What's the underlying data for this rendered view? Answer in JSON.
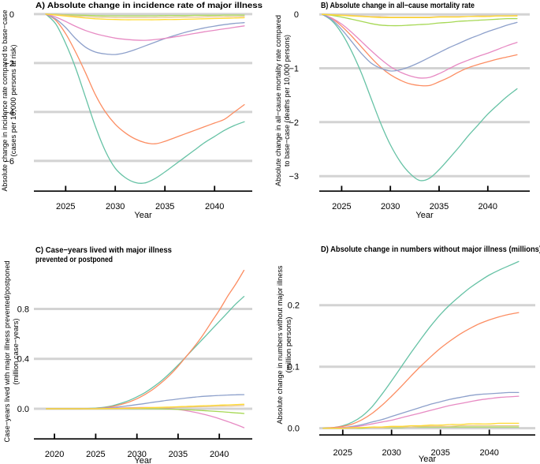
{
  "figure": {
    "background": "#ffffff"
  },
  "style": {
    "grid_color": "#d3d3d3",
    "axis_color": "#000000",
    "text_color": "#000000",
    "series_stroke_width": 1.3,
    "grid_stroke_width": 3
  },
  "chart_data": [
    {
      "type": "line",
      "panel_label": "A",
      "title_lines": [
        "A) Absolute change in incidence rate of major illness"
      ],
      "ylabel_lines": [
        "Absolute change in incidence rate compared to base−case",
        "(cases per 10,000 persons at risk)"
      ],
      "xlabel": "Year",
      "grid": "horizontal",
      "legend": "none",
      "xlim": [
        2021.8,
        2043.8
      ],
      "ylim": [
        -7.26,
        0.19
      ],
      "xticks": [
        2025,
        2030,
        2035,
        2040
      ],
      "yticks": [
        {
          "v": 0,
          "label": "0"
        },
        {
          "v": -2,
          "label": "−2"
        },
        {
          "v": -4,
          "label": "−4"
        },
        {
          "v": -6,
          "label": "−6"
        }
      ],
      "x": [
        2023,
        2024,
        2025,
        2026,
        2027,
        2028,
        2029,
        2030,
        2031,
        2032,
        2033,
        2034,
        2035,
        2036,
        2037,
        2038,
        2039,
        2040,
        2041,
        2042,
        2043
      ],
      "series": [
        {
          "name": "teal",
          "color": "#66C2A5",
          "values": [
            0,
            -0.4,
            -1.2,
            -2.2,
            -3.4,
            -4.6,
            -5.6,
            -6.3,
            -6.68,
            -6.88,
            -6.9,
            -6.72,
            -6.45,
            -6.15,
            -5.85,
            -5.55,
            -5.25,
            -5.0,
            -4.75,
            -4.55,
            -4.4
          ]
        },
        {
          "name": "orange",
          "color": "#FC8D62",
          "values": [
            0,
            -0.25,
            -0.8,
            -1.55,
            -2.4,
            -3.3,
            -4.0,
            -4.5,
            -4.85,
            -5.1,
            -5.25,
            -5.3,
            -5.2,
            -5.05,
            -4.9,
            -4.75,
            -4.6,
            -4.45,
            -4.3,
            -4.0,
            -3.7
          ]
        },
        {
          "name": "blue",
          "color": "#8DA0CB",
          "values": [
            0,
            -0.2,
            -0.55,
            -1.0,
            -1.35,
            -1.55,
            -1.63,
            -1.65,
            -1.58,
            -1.45,
            -1.3,
            -1.15,
            -1.0,
            -0.87,
            -0.75,
            -0.65,
            -0.56,
            -0.49,
            -0.43,
            -0.38,
            -0.35
          ]
        },
        {
          "name": "pink",
          "color": "#E78AC3",
          "values": [
            0,
            -0.12,
            -0.3,
            -0.5,
            -0.67,
            -0.8,
            -0.9,
            -0.98,
            -1.03,
            -1.06,
            -1.07,
            -1.04,
            -0.99,
            -0.93,
            -0.86,
            -0.79,
            -0.72,
            -0.66,
            -0.6,
            -0.54,
            -0.48
          ]
        },
        {
          "name": "lime",
          "color": "#A6D854",
          "values": [
            0,
            -0.01,
            -0.03,
            -0.04,
            -0.05,
            -0.06,
            -0.07,
            -0.07,
            -0.07,
            -0.07,
            -0.07,
            -0.07,
            -0.06,
            -0.06,
            -0.06,
            -0.05,
            -0.05,
            -0.05,
            -0.04,
            -0.04,
            -0.04
          ]
        },
        {
          "name": "tan",
          "color": "#E5C494",
          "values": [
            0,
            -0.02,
            -0.05,
            -0.08,
            -0.1,
            -0.12,
            -0.13,
            -0.14,
            -0.14,
            -0.14,
            -0.14,
            -0.14,
            -0.13,
            -0.13,
            -0.12,
            -0.12,
            -0.11,
            -0.11,
            -0.1,
            -0.1,
            -0.09
          ]
        },
        {
          "name": "yellow",
          "color": "#FFD92F",
          "values": [
            0,
            -0.04,
            -0.08,
            -0.12,
            -0.16,
            -0.19,
            -0.21,
            -0.22,
            -0.23,
            -0.23,
            -0.23,
            -0.23,
            -0.22,
            -0.22,
            -0.21,
            -0.2,
            -0.19,
            -0.18,
            -0.17,
            -0.16,
            -0.15
          ]
        }
      ]
    },
    {
      "type": "line",
      "panel_label": "B",
      "title_lines": [
        "B) Absolute change in all−cause mortality rate"
      ],
      "ylabel_lines": [
        "Absolute change in all−cause mortality rate compared",
        "to base−case (deaths per 10,000 persons)"
      ],
      "xlabel": "Year",
      "grid": "horizontal",
      "legend": "none",
      "xlim": [
        2022.7,
        2044.3
      ],
      "ylim": [
        -3.29,
        0.09
      ],
      "xticks": [
        2025,
        2030,
        2035,
        2040
      ],
      "yticks": [
        {
          "v": 0,
          "label": "0"
        },
        {
          "v": -1,
          "label": "−1"
        },
        {
          "v": -2,
          "label": "−2"
        },
        {
          "v": -3,
          "label": "−3"
        }
      ],
      "x": [
        2023,
        2024,
        2025,
        2026,
        2027,
        2028,
        2029,
        2030,
        2031,
        2032,
        2033,
        2034,
        2035,
        2036,
        2037,
        2038,
        2039,
        2040,
        2041,
        2042,
        2043
      ],
      "series": [
        {
          "name": "teal",
          "color": "#66C2A5",
          "values": [
            0,
            -0.12,
            -0.35,
            -0.68,
            -1.08,
            -1.55,
            -2.02,
            -2.42,
            -2.73,
            -2.95,
            -3.08,
            -3.04,
            -2.88,
            -2.68,
            -2.47,
            -2.25,
            -2.05,
            -1.85,
            -1.68,
            -1.52,
            -1.38
          ]
        },
        {
          "name": "orange",
          "color": "#FC8D62",
          "values": [
            0,
            -0.08,
            -0.22,
            -0.4,
            -0.6,
            -0.8,
            -0.98,
            -1.12,
            -1.22,
            -1.29,
            -1.32,
            -1.32,
            -1.25,
            -1.17,
            -1.07,
            -0.99,
            -0.93,
            -0.88,
            -0.83,
            -0.79,
            -0.75
          ]
        },
        {
          "name": "pink",
          "color": "#E78AC3",
          "values": [
            0,
            -0.07,
            -0.18,
            -0.33,
            -0.5,
            -0.67,
            -0.83,
            -0.97,
            -1.07,
            -1.14,
            -1.18,
            -1.17,
            -1.1,
            -1.01,
            -0.92,
            -0.85,
            -0.78,
            -0.72,
            -0.65,
            -0.58,
            -0.52
          ]
        },
        {
          "name": "blue",
          "color": "#8DA0CB",
          "values": [
            0,
            -0.1,
            -0.28,
            -0.5,
            -0.72,
            -0.9,
            -1.0,
            -1.05,
            -1.03,
            -0.97,
            -0.89,
            -0.8,
            -0.71,
            -0.62,
            -0.54,
            -0.46,
            -0.39,
            -0.32,
            -0.26,
            -0.2,
            -0.15
          ]
        },
        {
          "name": "lime",
          "color": "#A6D854",
          "values": [
            0,
            -0.02,
            -0.05,
            -0.09,
            -0.13,
            -0.17,
            -0.2,
            -0.21,
            -0.21,
            -0.2,
            -0.19,
            -0.18,
            -0.16,
            -0.15,
            -0.13,
            -0.12,
            -0.11,
            -0.1,
            -0.09,
            -0.08,
            -0.08
          ]
        },
        {
          "name": "tan",
          "color": "#E5C494",
          "values": [
            0,
            -0.01,
            -0.01,
            -0.02,
            -0.03,
            -0.04,
            -0.04,
            -0.05,
            -0.05,
            -0.05,
            -0.05,
            -0.05,
            -0.04,
            -0.04,
            -0.04,
            -0.04,
            -0.03,
            -0.03,
            -0.03,
            -0.03,
            -0.02
          ]
        },
        {
          "name": "yellow",
          "color": "#FFD92F",
          "values": [
            0,
            -0.01,
            -0.02,
            -0.03,
            -0.04,
            -0.05,
            -0.06,
            -0.06,
            -0.06,
            -0.06,
            -0.06,
            -0.06,
            -0.05,
            -0.05,
            -0.05,
            -0.04,
            -0.04,
            -0.04,
            -0.03,
            -0.03,
            -0.03
          ]
        }
      ]
    },
    {
      "type": "line",
      "panel_label": "C",
      "title_lines": [
        "C) Case−years lived with major illness",
        "prevented or postponed"
      ],
      "ylabel_lines": [
        "Case−years lived with major illness prevented/postponed",
        "(million case−years)"
      ],
      "xlabel": "Year",
      "grid": "horizontal",
      "legend": "none",
      "xlim": [
        2017.5,
        2044.0
      ],
      "ylim": [
        -0.247,
        1.164
      ],
      "xticks": [
        2020,
        2025,
        2030,
        2035,
        2040
      ],
      "yticks": [
        {
          "v": 0,
          "label": "0.0"
        },
        {
          "v": 0.4,
          "label": "0.4"
        },
        {
          "v": 0.8,
          "label": "0.8"
        }
      ],
      "x": [
        2019,
        2020,
        2021,
        2022,
        2023,
        2024,
        2025,
        2026,
        2027,
        2028,
        2029,
        2030,
        2031,
        2032,
        2033,
        2034,
        2035,
        2036,
        2037,
        2038,
        2039,
        2040,
        2041,
        2042,
        2043
      ],
      "series": [
        {
          "name": "teal",
          "color": "#66C2A5",
          "values": [
            0,
            0,
            0,
            0,
            0,
            0.002,
            0.005,
            0.012,
            0.024,
            0.042,
            0.065,
            0.095,
            0.13,
            0.175,
            0.225,
            0.285,
            0.35,
            0.42,
            0.49,
            0.56,
            0.63,
            0.7,
            0.77,
            0.84,
            0.9
          ]
        },
        {
          "name": "orange",
          "color": "#FC8D62",
          "values": [
            0,
            0,
            0,
            0,
            0,
            0.001,
            0.003,
            0.008,
            0.018,
            0.033,
            0.053,
            0.08,
            0.115,
            0.158,
            0.21,
            0.27,
            0.34,
            0.42,
            0.5,
            0.59,
            0.69,
            0.79,
            0.9,
            1.0,
            1.11
          ]
        },
        {
          "name": "blue",
          "color": "#8DA0CB",
          "values": [
            0,
            0,
            0,
            0,
            0,
            0.001,
            0.002,
            0.005,
            0.01,
            0.016,
            0.024,
            0.033,
            0.042,
            0.052,
            0.061,
            0.07,
            0.078,
            0.086,
            0.093,
            0.099,
            0.103,
            0.107,
            0.11,
            0.112,
            0.113
          ]
        },
        {
          "name": "pink",
          "color": "#E78AC3",
          "values": [
            0,
            0,
            0,
            0,
            0,
            0,
            0.001,
            0.002,
            0.004,
            0.006,
            0.008,
            0.009,
            0.01,
            0.009,
            0.006,
            0.001,
            -0.006,
            -0.016,
            -0.028,
            -0.043,
            -0.06,
            -0.08,
            -0.102,
            -0.126,
            -0.152
          ]
        },
        {
          "name": "lime",
          "color": "#A6D854",
          "values": [
            0,
            0,
            0,
            0,
            0,
            0,
            0,
            0,
            0,
            0.001,
            0.001,
            0.001,
            0.001,
            0,
            -0.001,
            -0.003,
            -0.005,
            -0.008,
            -0.011,
            -0.015,
            -0.019,
            -0.023,
            -0.028,
            -0.033,
            -0.038
          ]
        },
        {
          "name": "tan",
          "color": "#E5C494",
          "values": [
            0,
            0,
            0,
            0,
            0,
            0,
            0,
            0.001,
            0.001,
            0.002,
            0.003,
            0.004,
            0.006,
            0.007,
            0.008,
            0.01,
            0.011,
            0.013,
            0.015,
            0.016,
            0.018,
            0.02,
            0.021,
            0.023,
            0.025
          ]
        },
        {
          "name": "yellow",
          "color": "#FFD92F",
          "values": [
            0,
            0,
            0,
            0,
            0,
            0,
            0,
            0.001,
            0.002,
            0.003,
            0.005,
            0.006,
            0.008,
            0.01,
            0.012,
            0.014,
            0.016,
            0.019,
            0.021,
            0.024,
            0.026,
            0.029,
            0.031,
            0.034,
            0.036
          ]
        }
      ]
    },
    {
      "type": "line",
      "panel_label": "D",
      "title_lines": [
        "D) Absolute change in numbers without major illness (millions)"
      ],
      "ylabel_lines": [
        "Absolute change in numbers without major illness",
        "(million persons)"
      ],
      "xlabel": "Year",
      "grid": "horizontal",
      "legend": "none",
      "xlim": [
        2022.6,
        2044.7
      ],
      "ylim": [
        -0.012,
        0.283
      ],
      "xticks": [
        2025,
        2030,
        2035,
        2040
      ],
      "yticks": [
        {
          "v": 0,
          "label": "0.0"
        },
        {
          "v": 0.1,
          "label": "0.1"
        },
        {
          "v": 0.2,
          "label": "0.2"
        }
      ],
      "x": [
        2023,
        2024,
        2025,
        2026,
        2027,
        2028,
        2029,
        2030,
        2031,
        2032,
        2033,
        2034,
        2035,
        2036,
        2037,
        2038,
        2039,
        2040,
        2041,
        2042,
        2043
      ],
      "series": [
        {
          "name": "teal",
          "color": "#66C2A5",
          "values": [
            0,
            0.001,
            0.004,
            0.01,
            0.02,
            0.035,
            0.055,
            0.077,
            0.1,
            0.123,
            0.145,
            0.166,
            0.185,
            0.201,
            0.215,
            0.228,
            0.239,
            0.249,
            0.257,
            0.264,
            0.271
          ]
        },
        {
          "name": "orange",
          "color": "#FC8D62",
          "values": [
            0,
            0.001,
            0.003,
            0.007,
            0.014,
            0.024,
            0.037,
            0.052,
            0.068,
            0.085,
            0.101,
            0.116,
            0.13,
            0.142,
            0.153,
            0.162,
            0.17,
            0.176,
            0.181,
            0.185,
            0.188
          ]
        },
        {
          "name": "blue",
          "color": "#8DA0CB",
          "values": [
            0,
            0,
            0.001,
            0.003,
            0.006,
            0.01,
            0.014,
            0.019,
            0.024,
            0.029,
            0.034,
            0.039,
            0.043,
            0.047,
            0.05,
            0.053,
            0.055,
            0.056,
            0.057,
            0.058,
            0.058
          ]
        },
        {
          "name": "pink",
          "color": "#E78AC3",
          "values": [
            0,
            0,
            0.001,
            0.002,
            0.004,
            0.007,
            0.01,
            0.013,
            0.017,
            0.021,
            0.025,
            0.029,
            0.033,
            0.037,
            0.04,
            0.043,
            0.046,
            0.048,
            0.05,
            0.051,
            0.052
          ]
        },
        {
          "name": "lime",
          "color": "#A6D854",
          "values": [
            0,
            0,
            0,
            0,
            0,
            0.001,
            0.001,
            0.001,
            0.001,
            0.002,
            0.002,
            0.002,
            0.002,
            0.002,
            0.002,
            0.002,
            0.002,
            0.002,
            0.002,
            0.002,
            0.002
          ]
        },
        {
          "name": "tan",
          "color": "#E5C494",
          "values": [
            0,
            0,
            0,
            0,
            0.001,
            0.001,
            0.001,
            0.002,
            0.002,
            0.002,
            0.003,
            0.003,
            0.003,
            0.003,
            0.004,
            0.004,
            0.004,
            0.004,
            0.004,
            0.004,
            0.004
          ]
        },
        {
          "name": "yellow",
          "color": "#FFD92F",
          "values": [
            0,
            0,
            0,
            0.001,
            0.001,
            0.002,
            0.002,
            0.003,
            0.003,
            0.004,
            0.004,
            0.005,
            0.005,
            0.006,
            0.006,
            0.007,
            0.007,
            0.007,
            0.008,
            0.008,
            0.008
          ]
        }
      ]
    }
  ]
}
